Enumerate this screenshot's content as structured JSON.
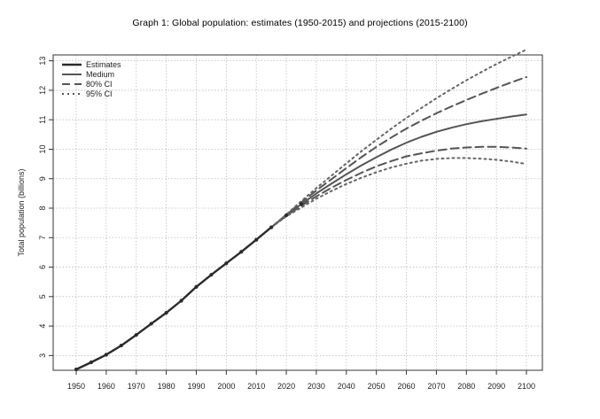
{
  "chart_data": {
    "type": "line",
    "title": "Graph 1: Global population: estimates (1950-2015) and projections (2015-2100)",
    "xlabel": "",
    "ylabel": "Total population (billions)",
    "xlim": [
      1950,
      2100
    ],
    "ylim": [
      2.5,
      13.2
    ],
    "x_ticks": [
      1950,
      1960,
      1970,
      1980,
      1990,
      2000,
      2010,
      2020,
      2030,
      2040,
      2050,
      2060,
      2070,
      2080,
      2090,
      2100
    ],
    "y_ticks": [
      3,
      4,
      5,
      6,
      7,
      8,
      9,
      10,
      11,
      12,
      13
    ],
    "grid": true,
    "legend_position": "top-left",
    "series": [
      {
        "name": "Estimates",
        "style": "solid-thick",
        "color": "#2b2b2b",
        "x": [
          1950,
          1955,
          1960,
          1965,
          1970,
          1975,
          1980,
          1985,
          1990,
          1995,
          2000,
          2005,
          2010,
          2015
        ],
        "values": [
          2.53,
          2.77,
          3.03,
          3.34,
          3.7,
          4.08,
          4.45,
          4.86,
          5.33,
          5.74,
          6.13,
          6.52,
          6.93,
          7.35
        ]
      },
      {
        "name": "Medium",
        "style": "solid",
        "color": "#555555",
        "x": [
          2015,
          2020,
          2025,
          2030,
          2035,
          2040,
          2045,
          2050,
          2055,
          2060,
          2065,
          2070,
          2075,
          2080,
          2085,
          2090,
          2095,
          2100
        ],
        "values": [
          7.35,
          7.76,
          8.14,
          8.5,
          8.83,
          9.15,
          9.45,
          9.73,
          9.99,
          10.22,
          10.42,
          10.59,
          10.73,
          10.85,
          10.95,
          11.03,
          11.11,
          11.18
        ]
      },
      {
        "name": "80% CI (upper)",
        "style": "dashed",
        "color": "#555555",
        "x": [
          2015,
          2020,
          2025,
          2030,
          2035,
          2040,
          2045,
          2050,
          2055,
          2060,
          2065,
          2070,
          2075,
          2080,
          2085,
          2090,
          2095,
          2100
        ],
        "values": [
          7.35,
          7.78,
          8.2,
          8.6,
          8.98,
          9.36,
          9.73,
          10.08,
          10.4,
          10.7,
          10.97,
          11.22,
          11.45,
          11.67,
          11.88,
          12.08,
          12.27,
          12.45
        ]
      },
      {
        "name": "80% CI (lower)",
        "style": "dashed",
        "color": "#555555",
        "x": [
          2015,
          2020,
          2025,
          2030,
          2035,
          2040,
          2045,
          2050,
          2055,
          2060,
          2065,
          2070,
          2075,
          2080,
          2085,
          2090,
          2095,
          2100
        ],
        "values": [
          7.35,
          7.74,
          8.08,
          8.4,
          8.69,
          8.96,
          9.2,
          9.42,
          9.6,
          9.76,
          9.86,
          9.95,
          10.02,
          10.06,
          10.08,
          10.08,
          10.06,
          10.02
        ]
      },
      {
        "name": "95% CI (upper)",
        "style": "dotted",
        "color": "#666666",
        "x": [
          2015,
          2020,
          2025,
          2030,
          2035,
          2040,
          2045,
          2050,
          2055,
          2060,
          2065,
          2070,
          2075,
          2080,
          2085,
          2090,
          2095,
          2100
        ],
        "values": [
          7.35,
          7.79,
          8.24,
          8.68,
          9.1,
          9.52,
          9.93,
          10.32,
          10.7,
          11.06,
          11.4,
          11.73,
          12.04,
          12.34,
          12.62,
          12.89,
          13.14,
          13.38
        ]
      },
      {
        "name": "95% CI (lower)",
        "style": "dotted",
        "color": "#666666",
        "x": [
          2015,
          2020,
          2025,
          2030,
          2035,
          2040,
          2045,
          2050,
          2055,
          2060,
          2065,
          2070,
          2075,
          2080,
          2085,
          2090,
          2095,
          2100
        ],
        "values": [
          7.35,
          7.72,
          8.02,
          8.32,
          8.58,
          8.82,
          9.03,
          9.22,
          9.38,
          9.51,
          9.61,
          9.67,
          9.7,
          9.7,
          9.68,
          9.64,
          9.58,
          9.5
        ]
      }
    ],
    "legend": [
      {
        "label": "Estimates",
        "style": "solid-thick"
      },
      {
        "label": "Medium",
        "style": "solid"
      },
      {
        "label": "80% CI",
        "style": "dashed"
      },
      {
        "label": "95% CI",
        "style": "dotted"
      }
    ],
    "estimate_markers": {
      "x": [
        1950,
        1955,
        1960,
        1965,
        1970,
        1975,
        1980,
        1985,
        1990,
        1995,
        2000,
        2005,
        2010,
        2015,
        2020,
        2025
      ],
      "values": [
        2.53,
        2.77,
        3.03,
        3.34,
        3.7,
        4.08,
        4.45,
        4.86,
        5.33,
        5.74,
        6.13,
        6.52,
        6.93,
        7.35,
        7.76,
        8.14
      ]
    }
  }
}
